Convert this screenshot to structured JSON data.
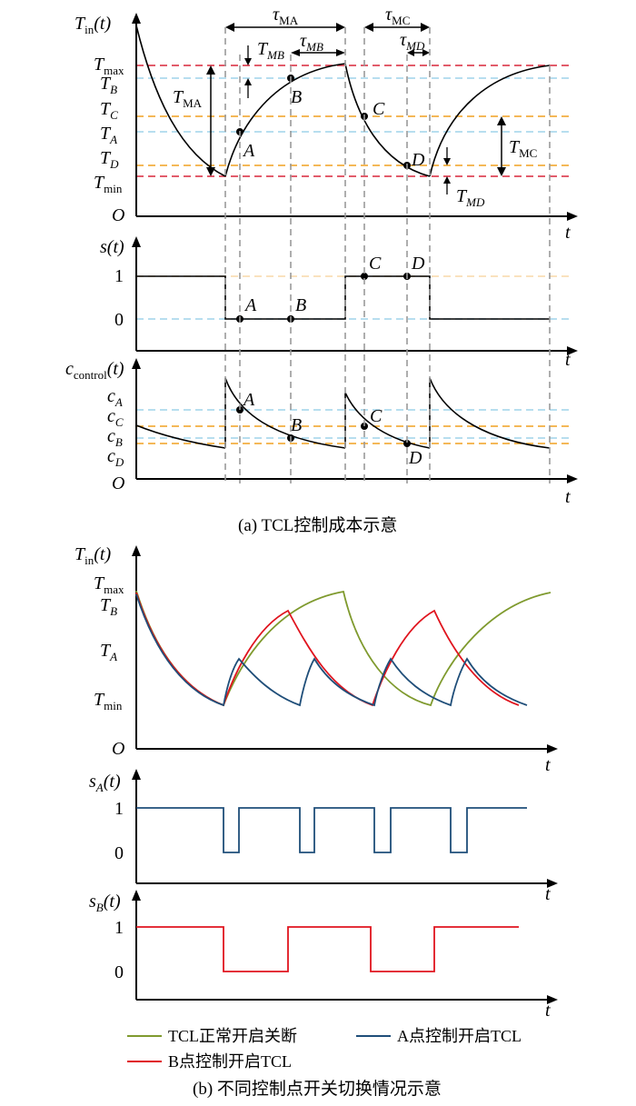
{
  "top": {
    "yaxis1_label": "T",
    "yaxis1_sub": "in",
    "yaxis1_arg": "(t)",
    "yaxis2_label": "s(t)",
    "yaxis3_label": "c",
    "yaxis3_sub": "control",
    "yaxis3_arg": "(t)",
    "x_label": "t",
    "origin": "O",
    "levels": [
      {
        "key": "Tmax",
        "main": "T",
        "sub": "max",
        "sub_italic": false
      },
      {
        "key": "TB",
        "main": "T",
        "sub": "B",
        "sub_italic": true
      },
      {
        "key": "TC",
        "main": "T",
        "sub": "C",
        "sub_italic": true
      },
      {
        "key": "TA",
        "main": "T",
        "sub": "A",
        "sub_italic": true
      },
      {
        "key": "TD",
        "main": "T",
        "sub": "D",
        "sub_italic": true
      },
      {
        "key": "Tmin",
        "main": "T",
        "sub": "min",
        "sub_italic": false
      }
    ],
    "s_ticks": [
      "1",
      "0"
    ],
    "c_levels": [
      {
        "main": "c",
        "sub": "A"
      },
      {
        "main": "c",
        "sub": "C"
      },
      {
        "main": "c",
        "sub": "B"
      },
      {
        "main": "c",
        "sub": "D"
      }
    ],
    "points": [
      "A",
      "B",
      "C",
      "D"
    ],
    "tau_MA": {
      "main": "τ",
      "sub": "MA"
    },
    "tau_MB": {
      "main": "τ",
      "sub": "MB"
    },
    "tau_MC": {
      "main": "τ",
      "sub": "MC"
    },
    "tau_MD": {
      "main": "τ",
      "sub": "MD"
    },
    "T_MA": {
      "main": "T",
      "sub": "MA"
    },
    "T_MB": {
      "main": "T",
      "sub": "MB"
    },
    "T_MC": {
      "main": "T",
      "sub": "MC"
    },
    "T_MD": {
      "main": "T",
      "sub": "MD"
    },
    "caption": "(a)  TCL控制成本示意"
  },
  "bottom": {
    "yaxis1_label": "T",
    "yaxis1_sub": "in",
    "yaxis1_arg": "(t)",
    "levels": [
      {
        "main": "T",
        "sub": "max",
        "sub_italic": false
      },
      {
        "main": "T",
        "sub": "B",
        "sub_italic": true
      },
      {
        "main": "T",
        "sub": "A",
        "sub_italic": true
      },
      {
        "main": "T",
        "sub": "min",
        "sub_italic": false
      }
    ],
    "origin": "O",
    "x_label": "t",
    "sA_label": "s",
    "sA_sub": "A",
    "sA_arg": "(t)",
    "sB_label": "s",
    "sB_sub": "B",
    "sB_arg": "(t)",
    "s_ticks": [
      "1",
      "0"
    ],
    "legend": [
      {
        "name": "TCL正常开启关断",
        "color": "#7f9a2e"
      },
      {
        "name": "A点控制开启TCL",
        "color": "#1f4e79",
        "italic_prefix": "A"
      },
      {
        "name": "B点控制开启TCL",
        "color": "#e0141e",
        "italic_prefix": "B"
      }
    ],
    "caption": "(b)  不同控制点开关切换情况示意"
  },
  "colors": {
    "red_dash": "#d9263a",
    "blue_dash": "#9fd3ea",
    "orange_dash": "#f0a020",
    "green": "#7f9a2e",
    "blue": "#1f4e79",
    "red": "#e0141e"
  }
}
